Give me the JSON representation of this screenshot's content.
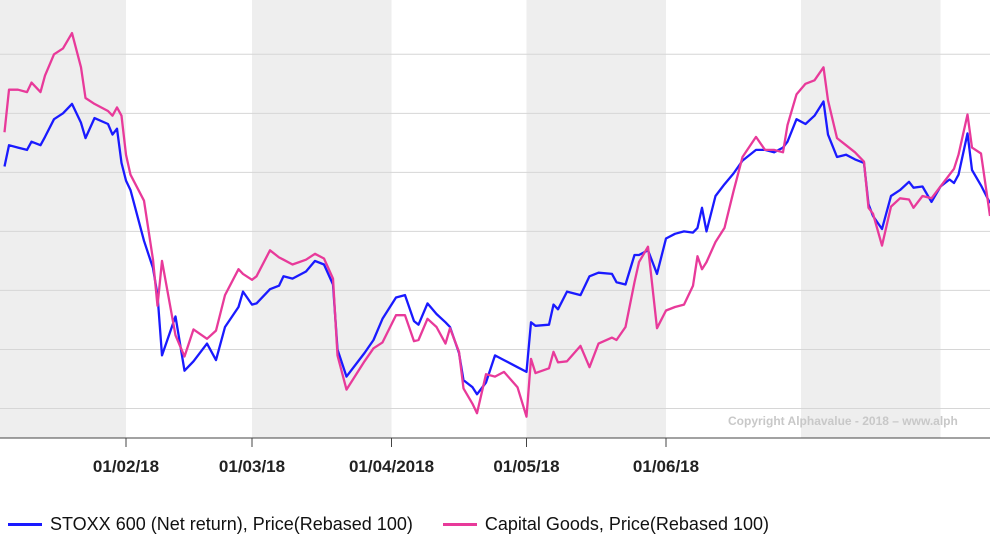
{
  "chart_data": {
    "type": "line",
    "x_ticks": [
      "01/02/18",
      "01/03/18",
      "01/04/2018",
      "01/05/18",
      "01/06/18"
    ],
    "series": [
      {
        "name": "STOXX 600 (Net return), Price(Rebased 100)",
        "color": "#1a1aff",
        "points": [
          [
            "2018-01-05",
            100.5
          ],
          [
            "2018-01-06",
            102.3
          ],
          [
            "2018-01-08",
            102.1
          ],
          [
            "2018-01-10",
            101.9
          ],
          [
            "2018-01-11",
            102.6
          ],
          [
            "2018-01-13",
            102.3
          ],
          [
            "2018-01-14",
            103.0
          ],
          [
            "2018-01-16",
            104.5
          ],
          [
            "2018-01-18",
            105.0
          ],
          [
            "2018-01-20",
            105.8
          ],
          [
            "2018-01-22",
            104.2
          ],
          [
            "2018-01-23",
            102.9
          ],
          [
            "2018-01-25",
            104.6
          ],
          [
            "2018-01-28",
            104.1
          ],
          [
            "2018-01-29",
            103.2
          ],
          [
            "2018-01-30",
            103.7
          ],
          [
            "2018-01-31",
            100.8
          ],
          [
            "2018-02-01",
            99.3
          ],
          [
            "2018-02-02",
            98.5
          ],
          [
            "2018-02-05",
            94.2
          ],
          [
            "2018-02-07",
            91.9
          ],
          [
            "2018-02-08",
            89.6
          ],
          [
            "2018-02-09",
            84.5
          ],
          [
            "2018-02-12",
            87.8
          ],
          [
            "2018-02-14",
            83.2
          ],
          [
            "2018-02-16",
            84.0
          ],
          [
            "2018-02-19",
            85.5
          ],
          [
            "2018-02-21",
            84.1
          ],
          [
            "2018-02-23",
            86.9
          ],
          [
            "2018-02-26",
            88.6
          ],
          [
            "2018-02-27",
            89.9
          ],
          [
            "2018-03-01",
            88.8
          ],
          [
            "2018-03-02",
            88.9
          ],
          [
            "2018-03-05",
            90.1
          ],
          [
            "2018-03-07",
            90.4
          ],
          [
            "2018-03-08",
            91.2
          ],
          [
            "2018-03-10",
            91.0
          ],
          [
            "2018-03-13",
            91.6
          ],
          [
            "2018-03-15",
            92.5
          ],
          [
            "2018-03-17",
            92.2
          ],
          [
            "2018-03-19",
            90.5
          ],
          [
            "2018-03-20",
            85.0
          ],
          [
            "2018-03-22",
            82.7
          ],
          [
            "2018-03-26",
            84.7
          ],
          [
            "2018-03-28",
            85.8
          ],
          [
            "2018-03-30",
            87.6
          ],
          [
            "2018-04-02",
            89.4
          ],
          [
            "2018-04-04",
            89.6
          ],
          [
            "2018-04-06",
            87.4
          ],
          [
            "2018-04-07",
            87.1
          ],
          [
            "2018-04-09",
            88.9
          ],
          [
            "2018-04-11",
            88.0
          ],
          [
            "2018-04-13",
            87.3
          ],
          [
            "2018-04-14",
            86.9
          ],
          [
            "2018-04-16",
            84.7
          ],
          [
            "2018-04-17",
            82.4
          ],
          [
            "2018-04-19",
            81.8
          ],
          [
            "2018-04-20",
            81.2
          ],
          [
            "2018-04-22",
            82.2
          ],
          [
            "2018-04-24",
            84.5
          ],
          [
            "2018-04-26",
            84.1
          ],
          [
            "2018-04-29",
            83.5
          ],
          [
            "2018-05-01",
            83.1
          ],
          [
            "2018-05-02",
            87.3
          ],
          [
            "2018-05-03",
            87.0
          ],
          [
            "2018-05-06",
            87.1
          ],
          [
            "2018-05-07",
            88.8
          ],
          [
            "2018-05-08",
            88.4
          ],
          [
            "2018-05-10",
            89.9
          ],
          [
            "2018-05-13",
            89.6
          ],
          [
            "2018-05-15",
            91.2
          ],
          [
            "2018-05-17",
            91.5
          ],
          [
            "2018-05-20",
            91.4
          ],
          [
            "2018-05-21",
            90.7
          ],
          [
            "2018-05-23",
            90.5
          ],
          [
            "2018-05-25",
            93.0
          ],
          [
            "2018-05-26",
            93.0
          ],
          [
            "2018-05-28",
            93.4
          ],
          [
            "2018-05-30",
            91.4
          ],
          [
            "2018-06-01",
            94.4
          ],
          [
            "2018-06-03",
            94.8
          ],
          [
            "2018-06-05",
            95.0
          ],
          [
            "2018-06-07",
            94.9
          ],
          [
            "2018-06-08",
            95.3
          ],
          [
            "2018-06-09",
            97.0
          ],
          [
            "2018-06-10",
            95.0
          ],
          [
            "2018-06-12",
            98.0
          ],
          [
            "2018-06-14",
            99.0
          ],
          [
            "2018-06-16",
            99.9
          ],
          [
            "2018-06-18",
            101.0
          ],
          [
            "2018-06-21",
            101.9
          ],
          [
            "2018-06-23",
            101.9
          ],
          [
            "2018-06-25",
            101.7
          ],
          [
            "2018-06-27",
            102.1
          ],
          [
            "2018-06-28",
            102.6
          ],
          [
            "2018-06-30",
            104.5
          ],
          [
            "2018-07-02",
            104.1
          ],
          [
            "2018-07-04",
            104.8
          ],
          [
            "2018-07-06",
            106.0
          ],
          [
            "2018-07-07",
            103.2
          ],
          [
            "2018-07-09",
            101.3
          ],
          [
            "2018-07-11",
            101.5
          ],
          [
            "2018-07-13",
            101.1
          ],
          [
            "2018-07-15",
            100.8
          ],
          [
            "2018-07-16",
            97.3
          ],
          [
            "2018-07-17",
            96.3
          ],
          [
            "2018-07-19",
            95.2
          ],
          [
            "2018-07-21",
            98.0
          ],
          [
            "2018-07-23",
            98.5
          ],
          [
            "2018-07-25",
            99.2
          ],
          [
            "2018-07-26",
            98.7
          ],
          [
            "2018-07-28",
            98.8
          ],
          [
            "2018-07-30",
            97.5
          ],
          [
            "2018-08-01",
            98.8
          ],
          [
            "2018-08-03",
            99.4
          ],
          [
            "2018-08-04",
            99.1
          ],
          [
            "2018-08-05",
            99.8
          ],
          [
            "2018-08-07",
            103.3
          ],
          [
            "2018-08-08",
            100.2
          ],
          [
            "2018-08-10",
            98.9
          ],
          [
            "2018-08-12",
            97.4
          ]
        ]
      },
      {
        "name": "Capital Goods, Price(Rebased 100)",
        "color": "#e83a9a",
        "points": [
          [
            "2018-01-05",
            103.4
          ],
          [
            "2018-01-06",
            107.0
          ],
          [
            "2018-01-08",
            107.0
          ],
          [
            "2018-01-10",
            106.8
          ],
          [
            "2018-01-11",
            107.6
          ],
          [
            "2018-01-13",
            106.8
          ],
          [
            "2018-01-14",
            108.2
          ],
          [
            "2018-01-16",
            110.0
          ],
          [
            "2018-01-18",
            110.5
          ],
          [
            "2018-01-20",
            111.8
          ],
          [
            "2018-01-22",
            108.9
          ],
          [
            "2018-01-23",
            106.3
          ],
          [
            "2018-01-25",
            105.8
          ],
          [
            "2018-01-28",
            105.2
          ],
          [
            "2018-01-29",
            104.8
          ],
          [
            "2018-01-30",
            105.5
          ],
          [
            "2018-01-31",
            104.8
          ],
          [
            "2018-02-01",
            101.5
          ],
          [
            "2018-02-02",
            99.8
          ],
          [
            "2018-02-05",
            97.6
          ],
          [
            "2018-02-07",
            92.6
          ],
          [
            "2018-02-08",
            88.7
          ],
          [
            "2018-02-09",
            92.5
          ],
          [
            "2018-02-12",
            86.2
          ],
          [
            "2018-02-14",
            84.4
          ],
          [
            "2018-02-16",
            86.7
          ],
          [
            "2018-02-19",
            85.9
          ],
          [
            "2018-02-21",
            86.6
          ],
          [
            "2018-02-23",
            89.6
          ],
          [
            "2018-02-26",
            91.8
          ],
          [
            "2018-02-27",
            91.4
          ],
          [
            "2018-03-01",
            90.9
          ],
          [
            "2018-03-02",
            91.2
          ],
          [
            "2018-03-05",
            93.4
          ],
          [
            "2018-03-07",
            92.8
          ],
          [
            "2018-03-08",
            92.6
          ],
          [
            "2018-03-10",
            92.2
          ],
          [
            "2018-03-13",
            92.6
          ],
          [
            "2018-03-15",
            93.1
          ],
          [
            "2018-03-17",
            92.7
          ],
          [
            "2018-03-19",
            91.0
          ],
          [
            "2018-03-20",
            84.5
          ],
          [
            "2018-03-22",
            81.6
          ],
          [
            "2018-03-26",
            84.0
          ],
          [
            "2018-03-28",
            85.1
          ],
          [
            "2018-03-30",
            85.6
          ],
          [
            "2018-04-02",
            87.9
          ],
          [
            "2018-04-04",
            87.9
          ],
          [
            "2018-04-06",
            85.7
          ],
          [
            "2018-04-07",
            85.8
          ],
          [
            "2018-04-09",
            87.6
          ],
          [
            "2018-04-11",
            86.9
          ],
          [
            "2018-04-13",
            85.5
          ],
          [
            "2018-04-14",
            86.8
          ],
          [
            "2018-04-16",
            84.8
          ],
          [
            "2018-04-17",
            81.7
          ],
          [
            "2018-04-19",
            80.4
          ],
          [
            "2018-04-20",
            79.6
          ],
          [
            "2018-04-22",
            82.9
          ],
          [
            "2018-04-24",
            82.7
          ],
          [
            "2018-04-26",
            83.1
          ],
          [
            "2018-04-29",
            81.8
          ],
          [
            "2018-05-01",
            79.3
          ],
          [
            "2018-05-02",
            84.2
          ],
          [
            "2018-05-03",
            83.0
          ],
          [
            "2018-05-06",
            83.4
          ],
          [
            "2018-05-07",
            84.8
          ],
          [
            "2018-05-08",
            83.9
          ],
          [
            "2018-05-10",
            84.0
          ],
          [
            "2018-05-13",
            85.3
          ],
          [
            "2018-05-15",
            83.5
          ],
          [
            "2018-05-17",
            85.5
          ],
          [
            "2018-05-20",
            86.0
          ],
          [
            "2018-05-21",
            85.8
          ],
          [
            "2018-05-23",
            86.9
          ],
          [
            "2018-05-25",
            90.7
          ],
          [
            "2018-05-26",
            92.4
          ],
          [
            "2018-05-28",
            93.7
          ],
          [
            "2018-05-30",
            86.8
          ],
          [
            "2018-06-01",
            88.3
          ],
          [
            "2018-06-03",
            88.6
          ],
          [
            "2018-06-05",
            88.8
          ],
          [
            "2018-06-07",
            90.4
          ],
          [
            "2018-06-08",
            92.9
          ],
          [
            "2018-06-09",
            91.8
          ],
          [
            "2018-06-10",
            92.4
          ],
          [
            "2018-06-12",
            94.1
          ],
          [
            "2018-06-14",
            95.3
          ],
          [
            "2018-06-16",
            98.4
          ],
          [
            "2018-06-18",
            101.3
          ],
          [
            "2018-06-21",
            103.0
          ],
          [
            "2018-06-23",
            101.9
          ],
          [
            "2018-06-25",
            101.9
          ],
          [
            "2018-06-27",
            101.7
          ],
          [
            "2018-06-28",
            104.0
          ],
          [
            "2018-06-30",
            106.6
          ],
          [
            "2018-07-02",
            107.5
          ],
          [
            "2018-07-04",
            107.8
          ],
          [
            "2018-07-06",
            108.9
          ],
          [
            "2018-07-07",
            106.1
          ],
          [
            "2018-07-09",
            102.9
          ],
          [
            "2018-07-11",
            102.3
          ],
          [
            "2018-07-13",
            101.7
          ],
          [
            "2018-07-15",
            100.9
          ],
          [
            "2018-07-16",
            97.0
          ],
          [
            "2018-07-17",
            96.5
          ],
          [
            "2018-07-19",
            93.8
          ],
          [
            "2018-07-21",
            97.1
          ],
          [
            "2018-07-23",
            97.8
          ],
          [
            "2018-07-25",
            97.7
          ],
          [
            "2018-07-26",
            97.0
          ],
          [
            "2018-07-28",
            98.0
          ],
          [
            "2018-07-30",
            97.8
          ],
          [
            "2018-08-01",
            98.8
          ],
          [
            "2018-08-03",
            99.8
          ],
          [
            "2018-08-04",
            100.3
          ],
          [
            "2018-08-05",
            101.5
          ],
          [
            "2018-08-07",
            104.9
          ],
          [
            "2018-08-08",
            102.1
          ],
          [
            "2018-08-10",
            101.6
          ],
          [
            "2018-08-12",
            96.3
          ]
        ]
      }
    ],
    "grid": true,
    "legend_position": "bottom",
    "annotation": "Copyright Alphavalue - 2018 – www.alph"
  }
}
